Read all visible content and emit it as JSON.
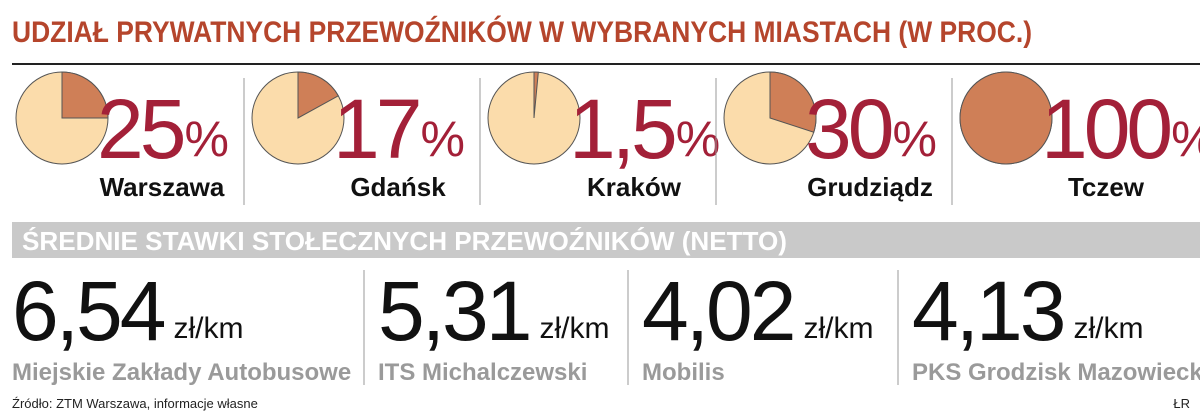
{
  "header": {
    "title": "UDZIAŁ PRYWATNYCH PRZEWOŹNIKÓW W WYBRANYCH MIASTACH (W PROC.)"
  },
  "shares": {
    "unit": "%",
    "items": [
      {
        "city": "Warszawa",
        "value": 25
      },
      {
        "city": "Gdańsk",
        "value": 17
      },
      {
        "city": "Kraków",
        "value": 1.5,
        "value_label": "1,5"
      },
      {
        "city": "Grudziądz",
        "value": 30
      },
      {
        "city": "Tczew",
        "value": 100
      }
    ]
  },
  "rates": {
    "title": "ŚREDNIE STAWKI STOŁECZNYCH PRZEWOŹNIKÓW (NETTO)",
    "unit": "zł/km",
    "items": [
      {
        "carrier": "Miejskie Zakłady Autobusowe",
        "value": 6.54,
        "value_label": "6,54"
      },
      {
        "carrier": "ITS Michalczewski",
        "value": 5.31,
        "value_label": "5,31"
      },
      {
        "carrier": "Mobilis",
        "value": 4.02,
        "value_label": "4,02"
      },
      {
        "carrier": "PKS Grodzisk Mazowiecki",
        "value": 4.13,
        "value_label": "4,13"
      }
    ]
  },
  "footer": {
    "source": "Źródło: ZTM Warszawa, informacje własne",
    "credit": "ŁR"
  }
}
